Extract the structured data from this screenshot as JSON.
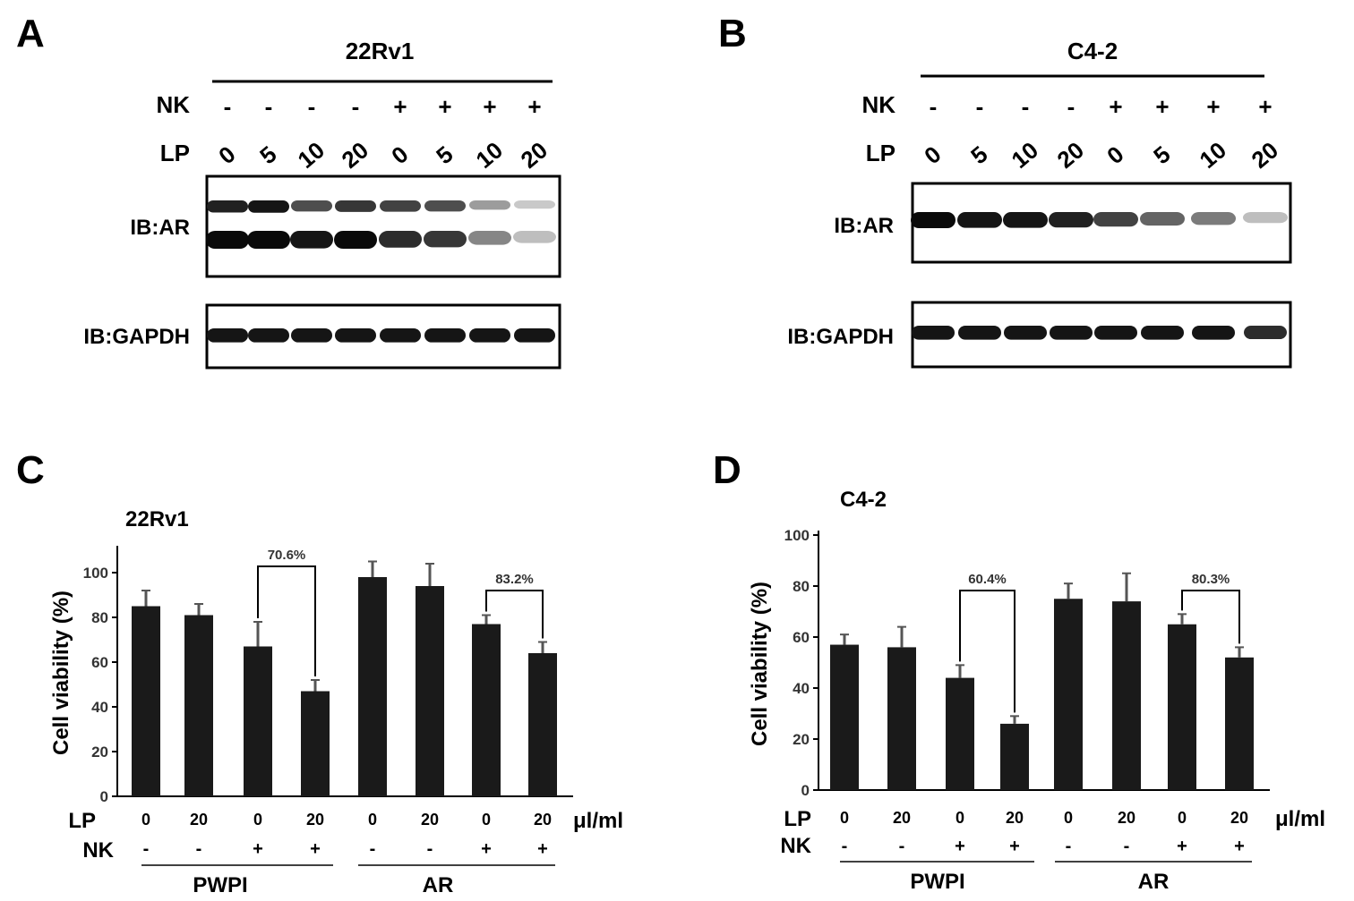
{
  "panels": {
    "A": {
      "letter": "A",
      "cell_line": "22Rv1",
      "nk_label": "NK",
      "lp_label": "LP",
      "nk": [
        "-",
        "-",
        "-",
        "-",
        "+",
        "+",
        "+",
        "+"
      ],
      "lp": [
        "0",
        "5",
        "10",
        "20",
        "0",
        "5",
        "10",
        "20"
      ],
      "blot_ar_label": "IB:AR",
      "blot_gapdh_label": "IB:GAPDH",
      "ar_upper_intensity": [
        0.9,
        0.95,
        0.7,
        0.8,
        0.75,
        0.7,
        0.35,
        0.15
      ],
      "ar_lower_intensity": [
        1.0,
        1.0,
        0.95,
        1.0,
        0.85,
        0.8,
        0.45,
        0.2
      ],
      "gapdh_intensity": [
        0.95,
        0.95,
        0.95,
        0.95,
        0.95,
        0.95,
        0.95,
        0.95
      ]
    },
    "B": {
      "letter": "B",
      "cell_line": "C4-2",
      "nk_label": "NK",
      "lp_label": "LP",
      "nk": [
        "-",
        "-",
        "-",
        "-",
        "+",
        "+",
        "+",
        "+"
      ],
      "lp": [
        "0",
        "5",
        "10",
        "20",
        "0",
        "5",
        "10",
        "20"
      ],
      "blot_ar_label": "IB:AR",
      "blot_gapdh_label": "IB:GAPDH",
      "ar_intensity": [
        1.0,
        0.95,
        0.95,
        0.9,
        0.75,
        0.6,
        0.5,
        0.2
      ],
      "gapdh_intensity": [
        0.95,
        0.95,
        0.95,
        0.95,
        0.95,
        0.95,
        0.95,
        0.85
      ]
    },
    "C": {
      "letter": "C",
      "title": "22Rv1",
      "ylabel": "Cell viability (%)",
      "lp_label": "LP",
      "nk_label": "NK",
      "unit": "μl/ml",
      "group1": "PWPI",
      "group2": "AR",
      "bracket1": "70.6%",
      "bracket2": "83.2%"
    },
    "D": {
      "letter": "D",
      "title": "C4-2",
      "ylabel": "Cell viability (%)",
      "lp_label": "LP",
      "nk_label": "NK",
      "unit": "μl/ml",
      "group1": "PWPI",
      "group2": "AR",
      "bracket1": "60.4%",
      "bracket2": "80.3%"
    }
  },
  "chart_data": [
    {
      "type": "bar",
      "title": "22Rv1",
      "ylabel": "Cell viability (%)",
      "ylim": [
        0,
        110
      ],
      "yticks": [
        0,
        20,
        40,
        60,
        80,
        100
      ],
      "lp": [
        "0",
        "20",
        "0",
        "20",
        "0",
        "20",
        "0",
        "20"
      ],
      "nk": [
        "-",
        "-",
        "+",
        "+",
        "-",
        "-",
        "+",
        "+"
      ],
      "values": [
        85,
        81,
        67,
        47,
        98,
        94,
        77,
        64
      ],
      "errors": [
        7,
        5,
        11,
        5,
        7,
        10,
        4,
        5
      ]
    },
    {
      "type": "bar",
      "title": "C4-2",
      "ylabel": "Cell viability (%)",
      "ylim": [
        0,
        100
      ],
      "yticks": [
        0,
        20,
        40,
        60,
        80,
        100
      ],
      "lp": [
        "0",
        "20",
        "0",
        "20",
        "0",
        "20",
        "0",
        "20"
      ],
      "nk": [
        "-",
        "-",
        "+",
        "+",
        "-",
        "-",
        "+",
        "+"
      ],
      "values": [
        57,
        56,
        44,
        26,
        75,
        74,
        65,
        52
      ],
      "errors": [
        4,
        8,
        5,
        3,
        6,
        11,
        4,
        4
      ]
    }
  ]
}
